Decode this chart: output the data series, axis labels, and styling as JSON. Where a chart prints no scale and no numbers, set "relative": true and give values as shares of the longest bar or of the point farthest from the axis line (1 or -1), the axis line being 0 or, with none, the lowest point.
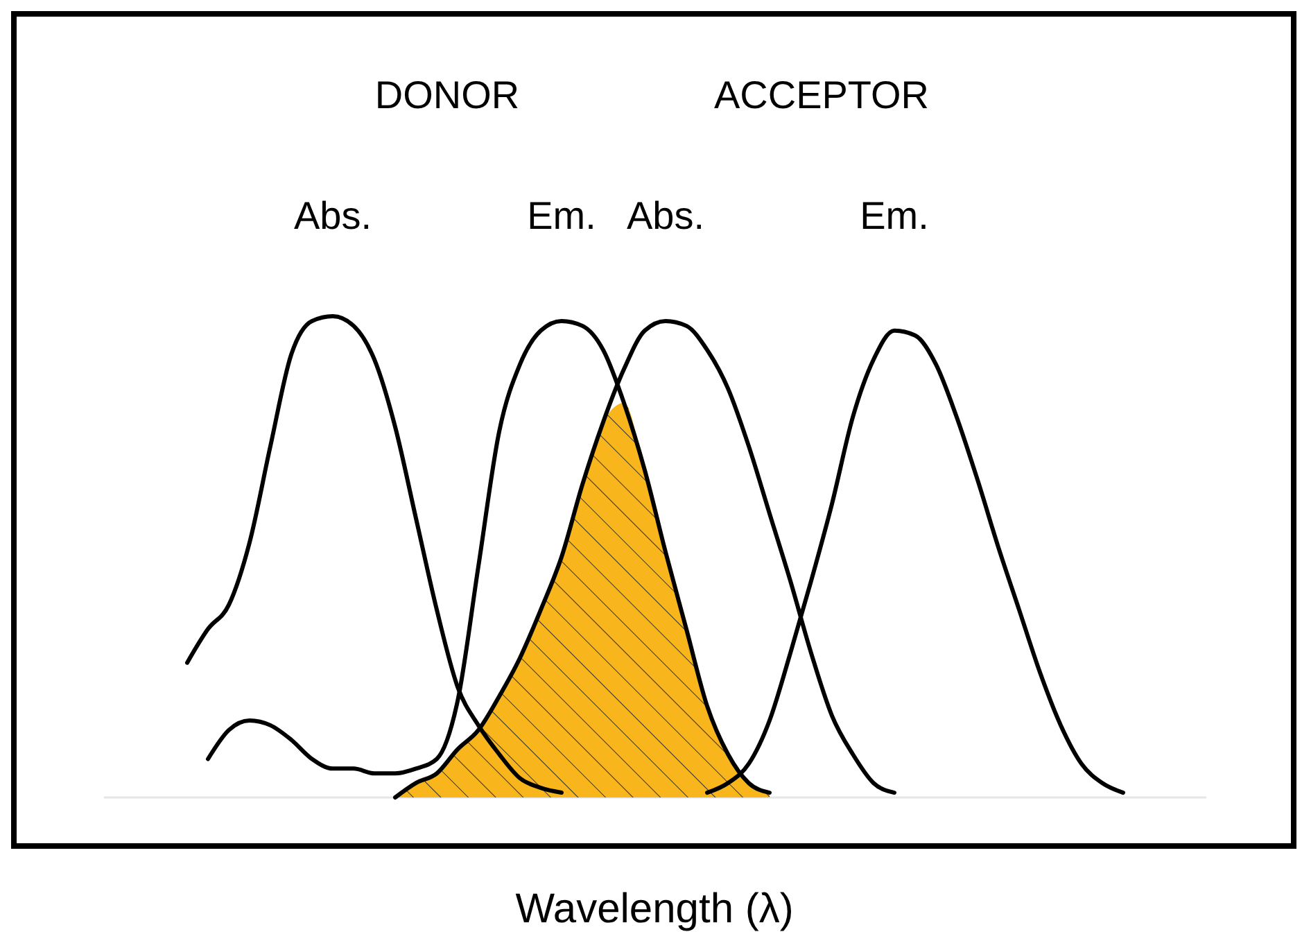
{
  "chart_data": {
    "type": "line",
    "relative": true,
    "xlabel": "Wavelength (λ)",
    "annotations": [
      "DONOR",
      "ACCEPTOR"
    ],
    "categories": [
      null,
      null,
      null,
      null,
      null,
      null,
      null,
      null,
      null,
      null,
      null,
      null,
      null,
      null,
      null,
      null,
      null,
      null,
      null,
      null,
      null,
      null,
      null,
      null,
      null,
      null,
      null,
      null,
      null,
      null,
      null,
      null,
      null,
      null,
      null,
      null,
      null,
      null,
      null,
      null,
      null,
      null,
      null,
      null,
      null,
      null,
      null,
      null,
      null,
      null,
      null,
      null,
      null,
      null
    ],
    "series": [
      {
        "type": "area",
        "color": "#f9b51c",
        "values": [
          null,
          null,
          null,
          null,
          null,
          null,
          null,
          null,
          null,
          null,
          null,
          null,
          null,
          null,
          0,
          0.03,
          0.05,
          0.1,
          0.14,
          0.21,
          0.29,
          0.39,
          0.5,
          0.65,
          0.78,
          0.82,
          0.68,
          0.51,
          0.35,
          0.19,
          0.09,
          0.03,
          0.01,
          null,
          null,
          null,
          null,
          null,
          null,
          null,
          null,
          null,
          null,
          null,
          null,
          null,
          null,
          null,
          null,
          null,
          null,
          null,
          null,
          null
        ]
      },
      {
        "name": "Abs.",
        "color": "#000000",
        "values": [
          null,
          null,
          null,
          null,
          0.28,
          0.35,
          0.4,
          0.53,
          0.73,
          0.92,
          0.99,
          1,
          0.98,
          0.91,
          0.77,
          0.58,
          0.39,
          0.23,
          0.15,
          0.09,
          0.04,
          0.02,
          0.01,
          null,
          null,
          null,
          null,
          null,
          null,
          null,
          null,
          null,
          null,
          null,
          null,
          null,
          null,
          null,
          null,
          null,
          null,
          null,
          null,
          null,
          null,
          null,
          null,
          null,
          null,
          null,
          null,
          null,
          null,
          null
        ]
      },
      {
        "name": "Em.",
        "color": "#000000",
        "values": [
          null,
          null,
          null,
          null,
          null,
          0.08,
          0.14,
          0.16,
          0.15,
          0.12,
          0.08,
          0.06,
          0.06,
          0.05,
          0.05,
          0.06,
          0.08,
          0.2,
          0.48,
          0.76,
          0.9,
          0.97,
          0.99,
          0.98,
          0.93,
          0.82,
          0.68,
          0.51,
          0.35,
          0.19,
          0.09,
          0.03,
          0.01,
          null,
          null,
          null,
          null,
          null,
          null,
          null,
          null,
          null,
          null,
          null,
          null,
          null,
          null,
          null,
          null,
          null,
          null,
          null,
          null,
          null
        ]
      },
      {
        "name": "Abs.",
        "color": "#000000",
        "values": [
          null,
          null,
          null,
          null,
          null,
          null,
          null,
          null,
          null,
          null,
          null,
          null,
          null,
          null,
          0,
          0.03,
          0.05,
          0.1,
          0.14,
          0.21,
          0.29,
          0.39,
          0.5,
          0.65,
          0.78,
          0.89,
          0.97,
          0.99,
          0.98,
          0.93,
          0.85,
          0.73,
          0.59,
          0.45,
          0.3,
          0.17,
          0.09,
          0.03,
          0.01,
          null,
          null,
          null,
          null,
          null,
          null,
          null,
          null,
          null,
          null,
          null,
          null,
          null,
          null,
          null
        ]
      },
      {
        "name": "Em.",
        "color": "#000000",
        "values": [
          null,
          null,
          null,
          null,
          null,
          null,
          null,
          null,
          null,
          null,
          null,
          null,
          null,
          null,
          null,
          null,
          null,
          null,
          null,
          null,
          null,
          null,
          null,
          null,
          null,
          null,
          null,
          null,
          null,
          0.01,
          0.03,
          0.07,
          0.16,
          0.3,
          0.45,
          0.61,
          0.79,
          0.91,
          0.97,
          0.96,
          0.9,
          0.79,
          0.66,
          0.52,
          0.39,
          0.26,
          0.15,
          0.07,
          0.03,
          0.01,
          null,
          null,
          null,
          null
        ]
      }
    ]
  }
}
